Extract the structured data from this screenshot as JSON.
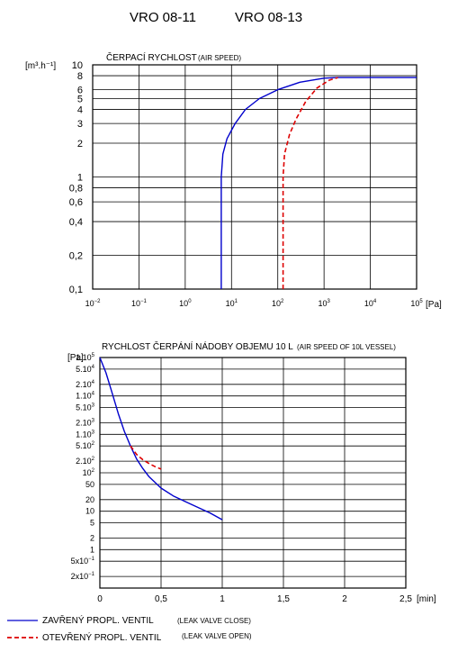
{
  "header": {
    "title_left": "VRO 08-11",
    "title_right": "VRO 08-13"
  },
  "colors": {
    "closed": "#0000cc",
    "open": "#dd0000",
    "grid": "#000000"
  },
  "legend": [
    {
      "label": "ZAVŘENÝ  PROPL.  VENTIL",
      "note": "(LEAK VALVE CLOSE)",
      "style": "solid",
      "color": "#0000cc"
    },
    {
      "label": "OTEVŘENÝ  PROPL.  VENTIL",
      "note": "(LEAK VALVE OPEN)",
      "style": "dashed",
      "color": "#dd0000"
    }
  ],
  "chart_data": [
    {
      "type": "line",
      "title": "ČERPACÍ RYCHLOST",
      "subtitle": "(AIR SPEED)",
      "ylabel": "[m³.h⁻¹]",
      "xlabel": "[Pa]",
      "xscale": "log",
      "yscale": "log",
      "xlim": [
        0.01,
        100000
      ],
      "ylim": [
        0.1,
        10
      ],
      "grid": true,
      "x_ticks": [
        {
          "v": 0.01,
          "base": "10",
          "exp": "−2"
        },
        {
          "v": 0.1,
          "base": "10",
          "exp": "−1"
        },
        {
          "v": 1,
          "base": "10",
          "exp": "0"
        },
        {
          "v": 10,
          "base": "10",
          "exp": "1"
        },
        {
          "v": 100,
          "base": "10",
          "exp": "2"
        },
        {
          "v": 1000,
          "base": "10",
          "exp": "3"
        },
        {
          "v": 10000,
          "base": "10",
          "exp": "4"
        },
        {
          "v": 100000,
          "base": "10",
          "exp": "5"
        }
      ],
      "y_ticks": [
        {
          "v": 10,
          "label": "10"
        },
        {
          "v": 8,
          "label": "8"
        },
        {
          "v": 6,
          "label": "6"
        },
        {
          "v": 5,
          "label": "5"
        },
        {
          "v": 4,
          "label": "4"
        },
        {
          "v": 3,
          "label": "3"
        },
        {
          "v": 2,
          "label": "2"
        },
        {
          "v": 1,
          "label": "1"
        },
        {
          "v": 0.8,
          "label": "0,8"
        },
        {
          "v": 0.6,
          "label": "0,6"
        },
        {
          "v": 0.4,
          "label": "0,4"
        },
        {
          "v": 0.2,
          "label": "0,2"
        },
        {
          "v": 0.1,
          "label": "0,1"
        }
      ],
      "series": [
        {
          "style": "solid",
          "color": "#0000cc",
          "points": [
            [
              6,
              0.1
            ],
            [
              6,
              1.0
            ],
            [
              6.5,
              1.6
            ],
            [
              8,
              2.2
            ],
            [
              12,
              3.0
            ],
            [
              20,
              4.0
            ],
            [
              40,
              5.0
            ],
            [
              100,
              6.0
            ],
            [
              300,
              7.0
            ],
            [
              1000,
              7.6
            ],
            [
              2000,
              7.7
            ],
            [
              100000,
              7.7
            ]
          ]
        },
        {
          "style": "dashed",
          "color": "#dd0000",
          "points": [
            [
              130,
              0.1
            ],
            [
              130,
              1.0
            ],
            [
              140,
              1.6
            ],
            [
              180,
              2.4
            ],
            [
              250,
              3.3
            ],
            [
              400,
              4.7
            ],
            [
              700,
              6.2
            ],
            [
              1300,
              7.3
            ],
            [
              2000,
              7.7
            ]
          ]
        }
      ]
    },
    {
      "type": "line",
      "title": "RYCHLOST ČERPÁNÍ NÁDOBY OBJEMU 10 L",
      "subtitle": "(AIR SPEED OF 10L VESSEL)",
      "ylabel": "[Pa]",
      "xlabel": "[min]",
      "xscale": "linear",
      "yscale": "log",
      "xlim": [
        0,
        2.5
      ],
      "ylim": [
        0.1,
        100000
      ],
      "grid": true,
      "x_ticks": [
        {
          "v": 0,
          "label": "0"
        },
        {
          "v": 0.5,
          "label": "0,5"
        },
        {
          "v": 1,
          "label": "1"
        },
        {
          "v": 1.5,
          "label": "1,5"
        },
        {
          "v": 2,
          "label": "2"
        },
        {
          "v": 2.5,
          "label": "2,5"
        }
      ],
      "y_ticks": [
        {
          "v": 100000,
          "label": "1.10",
          "exp": "5"
        },
        {
          "v": 50000,
          "label": "5.10",
          "exp": "4"
        },
        {
          "v": 20000,
          "label": "2.10",
          "exp": "4"
        },
        {
          "v": 10000,
          "label": "1.10",
          "exp": "4"
        },
        {
          "v": 5000,
          "label": "5.10",
          "exp": "3"
        },
        {
          "v": 2000,
          "label": "2.10",
          "exp": "3"
        },
        {
          "v": 1000,
          "label": "1.10",
          "exp": "3"
        },
        {
          "v": 500,
          "label": "5.10",
          "exp": "2"
        },
        {
          "v": 200,
          "label": "2.10",
          "exp": "2"
        },
        {
          "v": 100,
          "label": "10",
          "exp": "2"
        },
        {
          "v": 50,
          "label": "50"
        },
        {
          "v": 20,
          "label": "20"
        },
        {
          "v": 10,
          "label": "10"
        },
        {
          "v": 5,
          "label": "5"
        },
        {
          "v": 2,
          "label": "2"
        },
        {
          "v": 1,
          "label": "1"
        },
        {
          "v": 0.5,
          "label": "5x10",
          "exp": "−1"
        },
        {
          "v": 0.2,
          "label": "2x10",
          "exp": "−1"
        }
      ],
      "series": [
        {
          "style": "solid",
          "color": "#0000cc",
          "points": [
            [
              0,
              100000
            ],
            [
              0.05,
              40000
            ],
            [
              0.1,
              12000
            ],
            [
              0.15,
              3500
            ],
            [
              0.2,
              1200
            ],
            [
              0.25,
              500
            ],
            [
              0.3,
              230
            ],
            [
              0.35,
              130
            ],
            [
              0.4,
              80
            ],
            [
              0.5,
              40
            ],
            [
              0.6,
              25
            ],
            [
              0.75,
              15
            ],
            [
              0.9,
              9
            ],
            [
              1.0,
              6
            ]
          ]
        },
        {
          "style": "dashed",
          "color": "#dd0000",
          "points": [
            [
              0.25,
              500
            ],
            [
              0.3,
              300
            ],
            [
              0.35,
              220
            ],
            [
              0.4,
              175
            ],
            [
              0.45,
              145
            ],
            [
              0.5,
              125
            ]
          ]
        }
      ]
    }
  ]
}
